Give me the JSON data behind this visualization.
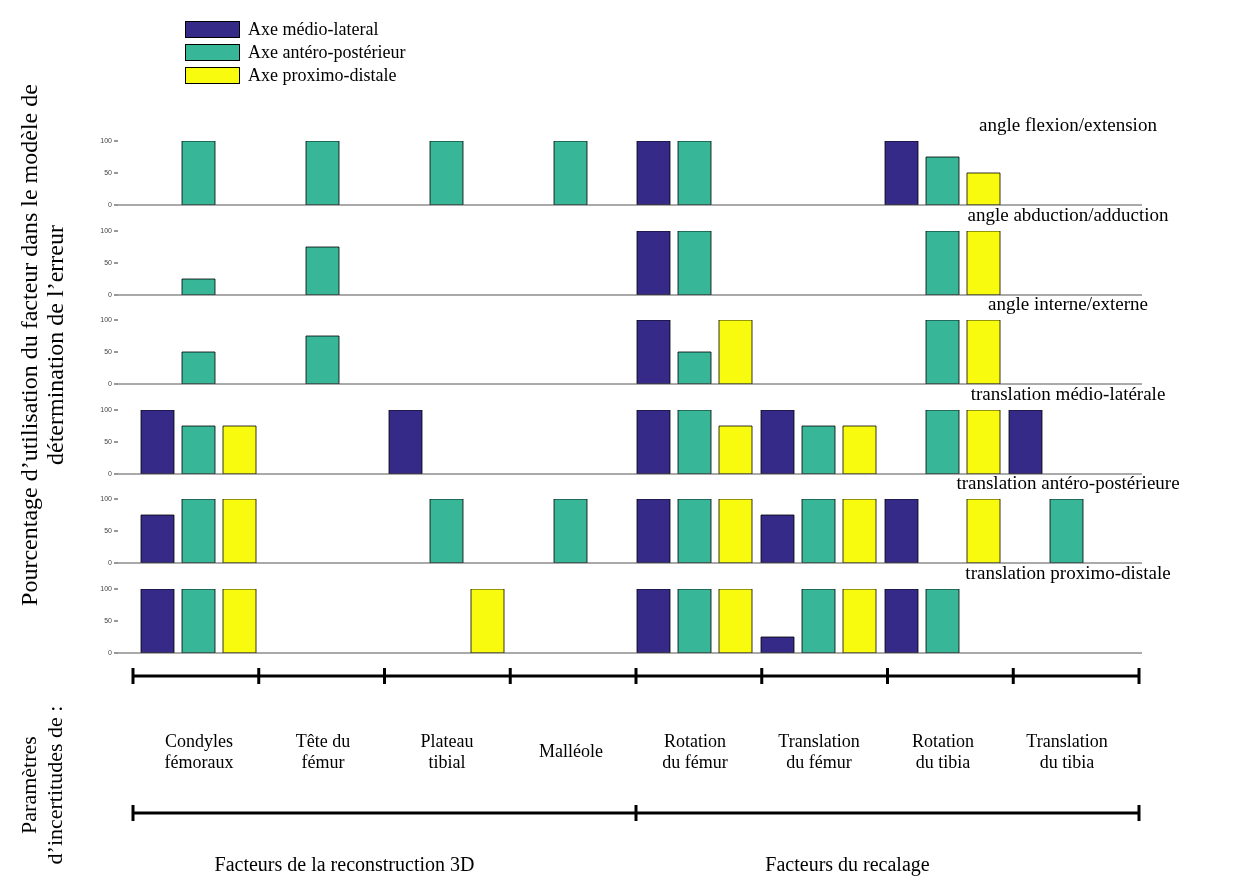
{
  "chart_data": [
    {
      "type": "bar",
      "title": "angle flexion/extension",
      "ylabel": "Pourcentage d’utilisation du facteur dans le modèle de détermination de l’erreur",
      "legend": "top left",
      "tick_labels": "y",
      "categories": [
        null,
        null,
        null,
        null,
        null,
        null,
        null,
        null
      ],
      "ylim": [
        0,
        100
      ],
      "yticks": [
        0,
        50,
        100
      ],
      "series": [
        {
          "name": "Axe médio-lateral",
          "color": "#352a87",
          "values": [
            0,
            0,
            0,
            0,
            100,
            0,
            100,
            0
          ]
        },
        {
          "name": "Axe antéro-postérieur",
          "color": "#38b698",
          "values": [
            100,
            100,
            100,
            100,
            100,
            0,
            75,
            0
          ]
        },
        {
          "name": "Axe proximo-distale",
          "color": "#f9fb0e",
          "values": [
            0,
            0,
            0,
            0,
            0,
            0,
            50,
            0
          ]
        }
      ]
    },
    {
      "type": "bar",
      "title": "angle abduction/adduction",
      "tick_labels": "y",
      "categories": [
        null,
        null,
        null,
        null,
        null,
        null,
        null,
        null
      ],
      "ylim": [
        0,
        100
      ],
      "yticks": [
        0,
        50,
        100
      ],
      "series": [
        {
          "color": "#352a87",
          "values": [
            0,
            0,
            0,
            0,
            100,
            0,
            0,
            0
          ]
        },
        {
          "color": "#38b698",
          "values": [
            25,
            75,
            0,
            0,
            100,
            0,
            100,
            0
          ]
        },
        {
          "color": "#f9fb0e",
          "values": [
            0,
            0,
            0,
            0,
            0,
            0,
            100,
            0
          ]
        }
      ]
    },
    {
      "type": "bar",
      "title": "angle interne/externe",
      "tick_labels": "y",
      "categories": [
        null,
        null,
        null,
        null,
        null,
        null,
        null,
        null
      ],
      "ylim": [
        0,
        100
      ],
      "yticks": [
        0,
        50,
        100
      ],
      "series": [
        {
          "color": "#352a87",
          "values": [
            0,
            0,
            0,
            0,
            100,
            0,
            0,
            0
          ]
        },
        {
          "color": "#38b698",
          "values": [
            50,
            75,
            0,
            0,
            50,
            0,
            100,
            0
          ]
        },
        {
          "color": "#f9fb0e",
          "values": [
            0,
            0,
            0,
            0,
            100,
            0,
            100,
            0
          ]
        }
      ]
    },
    {
      "type": "bar",
      "title": "translation médio-latérale",
      "tick_labels": "y",
      "categories": [
        null,
        null,
        null,
        null,
        null,
        null,
        null,
        null
      ],
      "ylim": [
        0,
        100
      ],
      "yticks": [
        0,
        50,
        100
      ],
      "series": [
        {
          "color": "#352a87",
          "values": [
            100,
            0,
            100,
            0,
            100,
            100,
            0,
            100
          ]
        },
        {
          "color": "#38b698",
          "values": [
            75,
            0,
            0,
            0,
            100,
            75,
            100,
            0
          ]
        },
        {
          "color": "#f9fb0e",
          "values": [
            75,
            0,
            0,
            0,
            75,
            75,
            100,
            0
          ]
        }
      ]
    },
    {
      "type": "bar",
      "title": "translation antéro-postérieure",
      "tick_labels": "y",
      "categories": [
        null,
        null,
        null,
        null,
        null,
        null,
        null,
        null
      ],
      "ylim": [
        0,
        100
      ],
      "yticks": [
        0,
        50,
        100
      ],
      "series": [
        {
          "color": "#352a87",
          "values": [
            75,
            0,
            0,
            0,
            100,
            75,
            100,
            0
          ]
        },
        {
          "color": "#38b698",
          "values": [
            100,
            0,
            100,
            100,
            100,
            100,
            0,
            100
          ]
        },
        {
          "color": "#f9fb0e",
          "values": [
            100,
            0,
            0,
            0,
            100,
            100,
            100,
            0
          ]
        }
      ]
    },
    {
      "type": "bar",
      "title": "translation proximo-distale",
      "ylabel": "Paramètres d’incertitudes de :",
      "annotations": [
        "Facteurs de la reconstruction 3D",
        "Facteurs du recalage"
      ],
      "categories": [
        "Condyles fémoraux",
        "Tête du fémur",
        "Plateau tibial",
        "Malléole",
        "Rotation du fémur",
        "Translation du fémur",
        "Rotation du tibia",
        "Translation du tibia"
      ],
      "ylim": [
        0,
        100
      ],
      "yticks": [
        0,
        50,
        100
      ],
      "series": [
        {
          "color": "#352a87",
          "values": [
            100,
            0,
            0,
            0,
            100,
            25,
            100,
            0
          ]
        },
        {
          "color": "#38b698",
          "values": [
            100,
            0,
            0,
            0,
            100,
            100,
            100,
            0
          ]
        },
        {
          "color": "#f9fb0e",
          "values": [
            100,
            0,
            100,
            0,
            100,
            100,
            0,
            0
          ]
        }
      ]
    }
  ]
}
